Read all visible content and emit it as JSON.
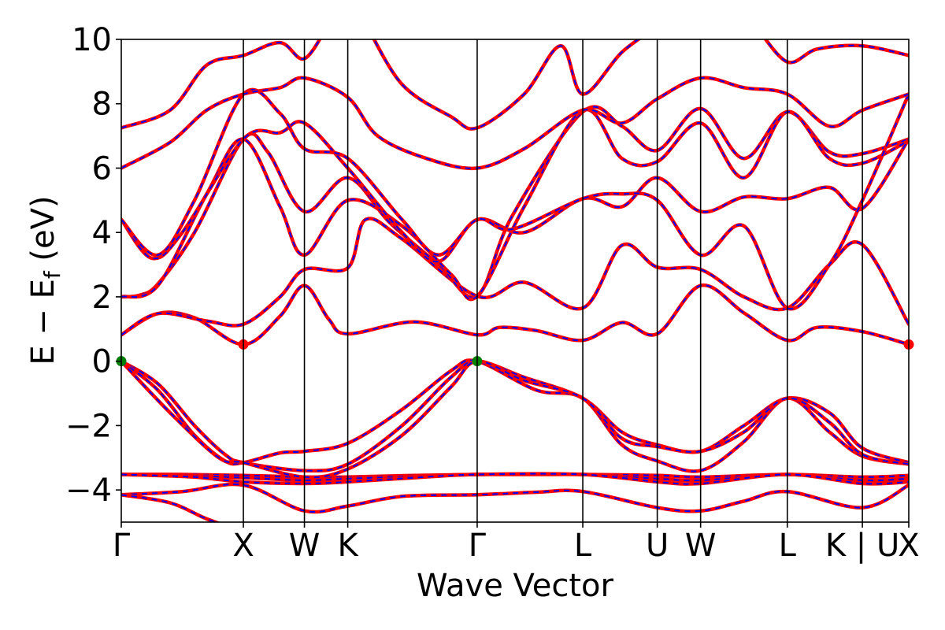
{
  "chart_data": {
    "type": "line",
    "title": "",
    "xlabel": "Wave Vector",
    "ylabel_main": "E − E",
    "ylabel_sub": "f",
    "ylabel_unit": " (eV)",
    "ylim": [
      -5,
      10
    ],
    "yticks": [
      -4,
      -2,
      0,
      2,
      4,
      6,
      8,
      10
    ],
    "ytick_labels": [
      "−4",
      "−2",
      "0",
      "2",
      "4",
      "6",
      "8",
      "10"
    ],
    "xlim": [
      0,
      6.45
    ],
    "kpath": [
      {
        "label": "Γ",
        "x": 0.0
      },
      {
        "label": "X",
        "x": 1.0
      },
      {
        "label": "W",
        "x": 1.5
      },
      {
        "label": "K",
        "x": 1.855
      },
      {
        "label": "Γ",
        "x": 2.915
      },
      {
        "label": "L",
        "x": 3.78
      },
      {
        "label": "U",
        "x": 4.39
      },
      {
        "label": "W",
        "x": 4.745
      },
      {
        "label": "L",
        "x": 5.455
      },
      {
        "label": "K | U",
        "x": 6.07
      },
      {
        "label": "X",
        "x": 6.45
      }
    ],
    "colors": {
      "band_line": "#ff0000",
      "band_overlay": "#0000ff",
      "vbm_marker": "#008000",
      "cbm_marker": "#ff0000"
    },
    "special_points": [
      {
        "name": "VBM",
        "x": 0.0,
        "y": 0.0,
        "color": "#008000"
      },
      {
        "name": "VBM",
        "x": 2.915,
        "y": 0.0,
        "color": "#008000"
      },
      {
        "name": "CBM",
        "x": 1.0,
        "y": 0.52,
        "color": "#ff0000"
      },
      {
        "name": "CBM",
        "x": 6.45,
        "y": 0.52,
        "color": "#ff0000"
      }
    ],
    "bands": [
      {
        "name": "valence-deep-1",
        "points": [
          [
            0,
            -4.15
          ],
          [
            0.5,
            -4.05
          ],
          [
            1.0,
            -3.85
          ],
          [
            1.5,
            -4.65
          ],
          [
            1.855,
            -4.5
          ],
          [
            2.3,
            -4.2
          ],
          [
            2.915,
            -4.15
          ],
          [
            3.4,
            -4.07
          ],
          [
            3.78,
            -4.05
          ],
          [
            4.39,
            -4.55
          ],
          [
            4.745,
            -4.65
          ],
          [
            5.1,
            -4.35
          ],
          [
            5.455,
            -4.05
          ],
          [
            6.07,
            -4.55
          ],
          [
            6.45,
            -3.85
          ]
        ]
      },
      {
        "name": "valence-deep-2",
        "points": [
          [
            0,
            -4.15
          ],
          [
            0.4,
            -4.4
          ],
          [
            0.7,
            -4.9
          ],
          [
            1.0,
            -5.3
          ]
        ]
      },
      {
        "name": "valence-flat-1",
        "points": [
          [
            0,
            -3.52
          ],
          [
            0.5,
            -3.52
          ],
          [
            1.0,
            -3.55
          ],
          [
            1.5,
            -3.6
          ],
          [
            1.855,
            -3.6
          ],
          [
            2.4,
            -3.55
          ],
          [
            2.915,
            -3.52
          ],
          [
            3.4,
            -3.52
          ],
          [
            3.78,
            -3.52
          ],
          [
            4.39,
            -3.55
          ],
          [
            4.745,
            -3.6
          ],
          [
            5.455,
            -3.52
          ],
          [
            6.07,
            -3.6
          ],
          [
            6.45,
            -3.55
          ]
        ]
      },
      {
        "name": "valence-flat-2",
        "points": [
          [
            0,
            -3.52
          ],
          [
            0.5,
            -3.55
          ],
          [
            1.0,
            -3.62
          ],
          [
            1.5,
            -3.7
          ],
          [
            1.855,
            -3.65
          ],
          [
            2.4,
            -3.58
          ],
          [
            2.915,
            -3.52
          ],
          [
            3.78,
            -3.52
          ],
          [
            4.39,
            -3.65
          ],
          [
            4.745,
            -3.7
          ],
          [
            5.455,
            -3.52
          ],
          [
            6.07,
            -3.7
          ],
          [
            6.45,
            -3.65
          ]
        ]
      },
      {
        "name": "valence-flat-3",
        "points": [
          [
            0,
            -3.52
          ],
          [
            0.6,
            -3.6
          ],
          [
            1.0,
            -3.75
          ],
          [
            1.5,
            -3.8
          ],
          [
            1.855,
            -3.75
          ],
          [
            2.4,
            -3.62
          ],
          [
            2.915,
            -3.52
          ],
          [
            3.78,
            -3.52
          ],
          [
            4.39,
            -3.75
          ],
          [
            4.745,
            -3.8
          ],
          [
            5.455,
            -3.52
          ],
          [
            6.07,
            -3.8
          ],
          [
            6.45,
            -3.75
          ]
        ]
      },
      {
        "name": "valence-top-1",
        "points": [
          [
            0,
            0
          ],
          [
            0.3,
            -0.7
          ],
          [
            0.6,
            -2.0
          ],
          [
            0.85,
            -2.9
          ],
          [
            1.0,
            -3.15
          ],
          [
            1.5,
            -3.4
          ],
          [
            1.855,
            -3.2
          ],
          [
            2.3,
            -2.0
          ],
          [
            2.7,
            -0.5
          ],
          [
            2.915,
            0
          ],
          [
            3.3,
            -0.5
          ],
          [
            3.78,
            -1.15
          ],
          [
            4.1,
            -2.2
          ],
          [
            4.39,
            -2.6
          ],
          [
            4.745,
            -2.8
          ],
          [
            5.1,
            -2.0
          ],
          [
            5.455,
            -1.15
          ],
          [
            5.8,
            -1.6
          ],
          [
            6.07,
            -2.7
          ],
          [
            6.45,
            -3.15
          ]
        ]
      },
      {
        "name": "valence-top-2",
        "points": [
          [
            0,
            0
          ],
          [
            0.3,
            -0.9
          ],
          [
            0.6,
            -2.3
          ],
          [
            0.85,
            -3.1
          ],
          [
            1.0,
            -3.15
          ],
          [
            1.3,
            -2.85
          ],
          [
            1.5,
            -2.8
          ],
          [
            1.855,
            -2.55
          ],
          [
            2.3,
            -1.5
          ],
          [
            2.7,
            -0.3
          ],
          [
            2.915,
            0
          ],
          [
            3.4,
            -0.9
          ],
          [
            3.78,
            -1.15
          ],
          [
            4.1,
            -2.6
          ],
          [
            4.39,
            -3.1
          ],
          [
            4.745,
            -3.4
          ],
          [
            5.1,
            -2.5
          ],
          [
            5.455,
            -1.15
          ],
          [
            5.8,
            -2.2
          ],
          [
            6.07,
            -2.95
          ],
          [
            6.45,
            -3.2
          ]
        ]
      },
      {
        "name": "valence-top-3",
        "points": [
          [
            0,
            0
          ],
          [
            0.4,
            -1.6
          ],
          [
            0.8,
            -3.0
          ],
          [
            1.0,
            -3.15
          ],
          [
            1.5,
            -3.6
          ],
          [
            1.855,
            -3.35
          ],
          [
            2.3,
            -2.3
          ],
          [
            2.7,
            -0.8
          ],
          [
            2.915,
            0
          ],
          [
            3.3,
            -0.6
          ],
          [
            3.78,
            -1.15
          ],
          [
            4.1,
            -2.4
          ],
          [
            4.39,
            -2.65
          ],
          [
            4.745,
            -2.8
          ],
          [
            5.1,
            -2.2
          ],
          [
            5.455,
            -1.15
          ],
          [
            5.8,
            -1.9
          ],
          [
            6.07,
            -2.9
          ],
          [
            6.45,
            -3.2
          ]
        ]
      },
      {
        "name": "conduction-1",
        "points": [
          [
            0,
            0.82
          ],
          [
            0.3,
            1.48
          ],
          [
            0.6,
            1.35
          ],
          [
            1.0,
            0.52
          ],
          [
            1.3,
            1.4
          ],
          [
            1.5,
            2.35
          ],
          [
            1.7,
            1.3
          ],
          [
            1.855,
            0.85
          ],
          [
            2.4,
            1.22
          ],
          [
            2.915,
            0.82
          ],
          [
            3.1,
            1.05
          ],
          [
            3.4,
            0.95
          ],
          [
            3.78,
            0.65
          ],
          [
            4.1,
            1.2
          ],
          [
            4.39,
            0.85
          ],
          [
            4.745,
            2.35
          ],
          [
            5.1,
            1.5
          ],
          [
            5.455,
            0.65
          ],
          [
            5.7,
            1.05
          ],
          [
            6.07,
            0.92
          ],
          [
            6.45,
            0.52
          ]
        ]
      },
      {
        "name": "conduction-2",
        "points": [
          [
            0,
            0.82
          ],
          [
            0.3,
            1.48
          ],
          [
            0.7,
            1.25
          ],
          [
            1.0,
            1.15
          ],
          [
            1.3,
            2.0
          ],
          [
            1.5,
            2.85
          ],
          [
            1.855,
            2.9
          ],
          [
            2.0,
            4.4
          ],
          [
            2.3,
            3.8
          ],
          [
            2.915,
            2.02
          ],
          [
            3.3,
            2.45
          ],
          [
            3.78,
            1.65
          ],
          [
            4.1,
            3.6
          ],
          [
            4.39,
            2.92
          ],
          [
            4.745,
            2.85
          ],
          [
            5.1,
            2.0
          ],
          [
            5.455,
            1.65
          ],
          [
            5.8,
            3.0
          ],
          [
            6.07,
            3.62
          ],
          [
            6.45,
            1.15
          ]
        ]
      },
      {
        "name": "conduction-3",
        "points": [
          [
            0,
            2.0
          ],
          [
            0.15,
            2.05
          ],
          [
            0.3,
            2.4
          ],
          [
            0.6,
            4.0
          ],
          [
            1.0,
            6.9
          ],
          [
            1.2,
            6.5
          ],
          [
            1.5,
            4.65
          ],
          [
            1.855,
            5.7
          ],
          [
            2.2,
            4.3
          ],
          [
            2.6,
            3.0
          ],
          [
            2.915,
            2.02
          ],
          [
            3.2,
            4.5
          ],
          [
            3.78,
            7.75
          ],
          [
            4.1,
            7.3
          ],
          [
            4.39,
            6.55
          ],
          [
            4.745,
            7.85
          ],
          [
            5.1,
            6.3
          ],
          [
            5.455,
            7.75
          ],
          [
            5.8,
            6.5
          ],
          [
            6.07,
            6.45
          ],
          [
            6.45,
            6.9
          ]
        ]
      },
      {
        "name": "conduction-4",
        "points": [
          [
            0,
            2.0
          ],
          [
            0.3,
            2.35
          ],
          [
            0.7,
            5.2
          ],
          [
            1.0,
            6.9
          ],
          [
            1.3,
            4.8
          ],
          [
            1.5,
            3.3
          ],
          [
            1.855,
            5.0
          ],
          [
            2.3,
            4.2
          ],
          [
            2.7,
            2.7
          ],
          [
            2.915,
            2.02
          ],
          [
            3.3,
            4.8
          ],
          [
            3.78,
            7.8
          ],
          [
            4.1,
            6.3
          ],
          [
            4.39,
            6.2
          ],
          [
            4.745,
            7.4
          ],
          [
            5.1,
            5.7
          ],
          [
            5.455,
            7.75
          ],
          [
            5.8,
            6.3
          ],
          [
            6.07,
            6.15
          ],
          [
            6.45,
            6.85
          ]
        ]
      },
      {
        "name": "conduction-5",
        "points": [
          [
            0,
            4.4
          ],
          [
            0.25,
            3.2
          ],
          [
            0.5,
            4.0
          ],
          [
            1.0,
            6.9
          ],
          [
            1.3,
            7.1
          ],
          [
            1.5,
            7.4
          ],
          [
            1.855,
            6.0
          ],
          [
            2.3,
            4.0
          ],
          [
            2.6,
            3.1
          ],
          [
            2.915,
            4.4
          ],
          [
            3.3,
            4.0
          ],
          [
            3.78,
            5.05
          ],
          [
            4.1,
            4.8
          ],
          [
            4.39,
            5.7
          ],
          [
            4.745,
            4.65
          ],
          [
            5.1,
            5.1
          ],
          [
            5.455,
            5.05
          ],
          [
            5.8,
            5.4
          ],
          [
            6.07,
            4.75
          ],
          [
            6.45,
            6.9
          ]
        ]
      },
      {
        "name": "conduction-6",
        "points": [
          [
            0,
            4.4
          ],
          [
            0.3,
            3.3
          ],
          [
            0.6,
            5.0
          ],
          [
            1.0,
            8.3
          ],
          [
            1.3,
            7.7
          ],
          [
            1.5,
            6.6
          ],
          [
            1.855,
            6.3
          ],
          [
            2.3,
            4.4
          ],
          [
            2.6,
            3.3
          ],
          [
            2.915,
            4.4
          ],
          [
            3.2,
            4.1
          ],
          [
            3.78,
            5.05
          ],
          [
            4.1,
            5.2
          ],
          [
            4.39,
            5.0
          ],
          [
            4.745,
            3.3
          ],
          [
            5.1,
            4.2
          ],
          [
            5.455,
            1.65
          ],
          [
            5.8,
            3.0
          ],
          [
            6.07,
            5.0
          ],
          [
            6.45,
            8.3
          ]
        ]
      },
      {
        "name": "conduction-7",
        "points": [
          [
            0,
            6.0
          ],
          [
            0.4,
            6.8
          ],
          [
            0.7,
            7.8
          ],
          [
            1.0,
            8.3
          ],
          [
            1.3,
            8.5
          ],
          [
            1.5,
            8.8
          ],
          [
            1.855,
            8.2
          ],
          [
            2.1,
            7.0
          ],
          [
            2.5,
            6.3
          ],
          [
            2.915,
            6.0
          ],
          [
            3.3,
            6.6
          ],
          [
            3.78,
            7.8
          ],
          [
            4.1,
            7.4
          ],
          [
            4.39,
            8.15
          ],
          [
            4.745,
            8.8
          ],
          [
            5.1,
            8.5
          ],
          [
            5.455,
            8.3
          ],
          [
            5.8,
            7.3
          ],
          [
            6.07,
            7.8
          ],
          [
            6.45,
            8.3
          ]
        ]
      },
      {
        "name": "conduction-8",
        "points": [
          [
            0,
            7.25
          ],
          [
            0.4,
            7.8
          ],
          [
            0.7,
            9.2
          ],
          [
            1.0,
            9.5
          ],
          [
            1.3,
            9.9
          ],
          [
            1.5,
            9.4
          ],
          [
            1.7,
            10.5
          ]
        ]
      },
      {
        "name": "conduction-9",
        "points": [
          [
            2.0,
            10.5
          ],
          [
            2.3,
            8.6
          ],
          [
            2.7,
            7.6
          ],
          [
            2.915,
            7.25
          ],
          [
            3.3,
            8.3
          ],
          [
            3.6,
            9.8
          ],
          [
            3.78,
            8.3
          ],
          [
            4.1,
            9.6
          ],
          [
            4.39,
            10.4
          ]
        ]
      },
      {
        "name": "conduction-10",
        "points": [
          [
            5.2,
            10.4
          ],
          [
            5.455,
            9.3
          ],
          [
            5.7,
            9.7
          ],
          [
            6.07,
            9.8
          ],
          [
            6.45,
            9.5
          ]
        ]
      }
    ]
  }
}
